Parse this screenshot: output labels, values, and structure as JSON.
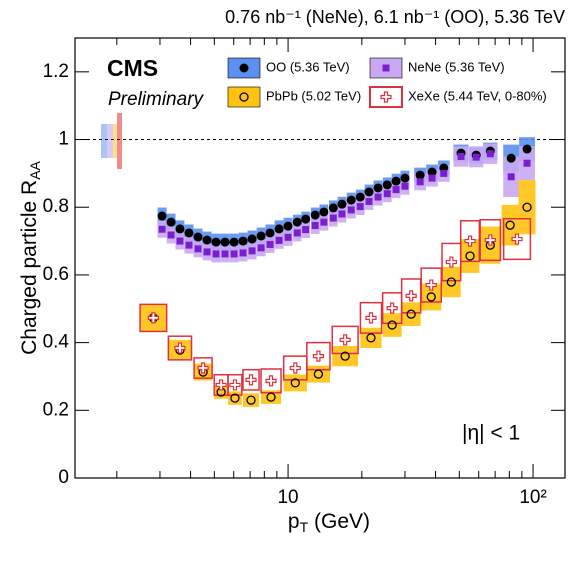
{
  "chart_data": {
    "type": "scatter",
    "title": "0.76 nb⁻¹ (NeNe), 6.1 nb⁻¹ (OO), 5.36 TeV",
    "experiment": "CMS",
    "status": "Preliminary",
    "annotation": "|η| < 1",
    "ylabel": "Charged particle R",
    "ylabel_sub": "AA",
    "xlabel": "p",
    "xlabel_sub": "T",
    "xlabel_unit": " (GeV)",
    "xscale": "log",
    "xlim": [
      1.35,
      135
    ],
    "ylim": [
      0,
      1.3
    ],
    "xticks": [
      10,
      {
        "value": 100,
        "label": "10²"
      }
    ],
    "xminorticks": [
      2,
      3,
      4,
      5,
      6,
      7,
      8,
      9,
      20,
      30,
      40,
      50,
      60,
      70,
      80,
      90
    ],
    "yticks": [
      0,
      0.2,
      0.4,
      0.6,
      0.8,
      1,
      1.2
    ],
    "reference_line": 1,
    "series": [
      {
        "name": "OO (5.36 TeV)",
        "color": "#5b8ff0",
        "marker_color": "#000000",
        "marker": "filled-circle",
        "box": "filled",
        "x": [
          3.06,
          3.33,
          3.62,
          3.94,
          4.29,
          4.67,
          5.08,
          5.53,
          6.02,
          6.55,
          7.13,
          7.76,
          8.44,
          9.19,
          10,
          10.9,
          11.8,
          12.9,
          14.0,
          15.3,
          16.6,
          18.1,
          19.7,
          21.4,
          23.3,
          25.4,
          27.6,
          30.0,
          34.6,
          38.7,
          43.2,
          50.8,
          58.6,
          66.9,
          81.4,
          94.5
        ],
        "values": [
          0.774,
          0.756,
          0.736,
          0.724,
          0.712,
          0.703,
          0.697,
          0.697,
          0.697,
          0.7,
          0.706,
          0.715,
          0.724,
          0.736,
          0.744,
          0.756,
          0.765,
          0.777,
          0.786,
          0.798,
          0.809,
          0.821,
          0.83,
          0.845,
          0.857,
          0.866,
          0.877,
          0.886,
          0.895,
          0.904,
          0.916,
          0.96,
          0.954,
          0.966,
          0.945,
          0.972
        ],
        "sys": [
          0.025,
          0.025,
          0.025,
          0.025,
          0.025,
          0.025,
          0.025,
          0.025,
          0.025,
          0.025,
          0.025,
          0.025,
          0.025,
          0.025,
          0.025,
          0.022,
          0.022,
          0.022,
          0.022,
          0.022,
          0.022,
          0.022,
          0.022,
          0.022,
          0.022,
          0.022,
          0.022,
          0.022,
          0.022,
          0.022,
          0.022,
          0.025,
          0.025,
          0.025,
          0.04,
          0.035
        ]
      },
      {
        "name": "NeNe (5.36 TeV)",
        "color": "#c9a8f2",
        "marker_color": "#7a1fd0",
        "marker": "filled-square",
        "box": "filled",
        "x": [
          3.06,
          3.33,
          3.62,
          3.94,
          4.29,
          4.67,
          5.08,
          5.53,
          6.02,
          6.55,
          7.13,
          7.76,
          8.44,
          9.19,
          10,
          10.9,
          11.8,
          12.9,
          14.0,
          15.3,
          16.6,
          18.1,
          19.7,
          21.4,
          23.3,
          25.4,
          27.6,
          30.0,
          34.6,
          38.7,
          43.2,
          50.8,
          58.6,
          66.9,
          81.4,
          94.5
        ],
        "values": [
          0.735,
          0.718,
          0.7,
          0.688,
          0.677,
          0.668,
          0.662,
          0.662,
          0.662,
          0.665,
          0.671,
          0.68,
          0.69,
          0.702,
          0.711,
          0.724,
          0.734,
          0.746,
          0.756,
          0.768,
          0.78,
          0.792,
          0.802,
          0.817,
          0.83,
          0.84,
          0.852,
          0.862,
          0.875,
          0.886,
          0.9,
          0.95,
          0.948,
          0.958,
          0.89,
          0.93
        ],
        "sys": [
          0.025,
          0.025,
          0.025,
          0.025,
          0.025,
          0.025,
          0.025,
          0.025,
          0.025,
          0.025,
          0.025,
          0.025,
          0.025,
          0.025,
          0.025,
          0.025,
          0.025,
          0.025,
          0.025,
          0.025,
          0.025,
          0.025,
          0.025,
          0.025,
          0.025,
          0.025,
          0.025,
          0.025,
          0.025,
          0.025,
          0.025,
          0.03,
          0.03,
          0.03,
          0.06,
          0.05
        ]
      },
      {
        "name": "PbPb (5.02 TeV)",
        "color": "#ffc20e",
        "marker_color": "#000000",
        "marker": "open-circle",
        "box": "filled",
        "x": [
          2.82,
          3.62,
          4.5,
          5.33,
          6.07,
          7.06,
          8.52,
          10.7,
          13.3,
          17.1,
          21.8,
          26.6,
          31.8,
          38.4,
          46.4,
          55.3,
          66.9,
          80.6,
          94.5
        ],
        "values": [
          0.473,
          0.378,
          0.313,
          0.254,
          0.236,
          0.23,
          0.239,
          0.281,
          0.307,
          0.36,
          0.414,
          0.452,
          0.484,
          0.535,
          0.579,
          0.656,
          0.688,
          0.747,
          0.8
        ],
        "sys": [
          0.04,
          0.03,
          0.025,
          0.02,
          0.02,
          0.02,
          0.02,
          0.025,
          0.025,
          0.03,
          0.03,
          0.035,
          0.035,
          0.04,
          0.045,
          0.05,
          0.055,
          0.06,
          0.08
        ]
      },
      {
        "name": "XeXe (5.44 TeV, 0-80%)",
        "color": "#e03040",
        "marker_color": "#e03040",
        "marker": "cross",
        "box": "outline",
        "x": [
          2.82,
          3.62,
          4.5,
          5.33,
          6.07,
          7.06,
          8.52,
          10.7,
          13.3,
          17.1,
          21.8,
          26.6,
          31.8,
          38.4,
          46.4,
          55.3,
          66.9,
          86.0
        ],
        "values": [
          0.473,
          0.384,
          0.325,
          0.275,
          0.275,
          0.29,
          0.287,
          0.325,
          0.36,
          0.408,
          0.473,
          0.502,
          0.538,
          0.57,
          0.638,
          0.7,
          0.703,
          0.706
        ],
        "sys": [
          0.04,
          0.035,
          0.03,
          0.03,
          0.03,
          0.03,
          0.035,
          0.035,
          0.04,
          0.04,
          0.045,
          0.045,
          0.05,
          0.05,
          0.055,
          0.06,
          0.06,
          0.06
        ]
      }
    ]
  }
}
